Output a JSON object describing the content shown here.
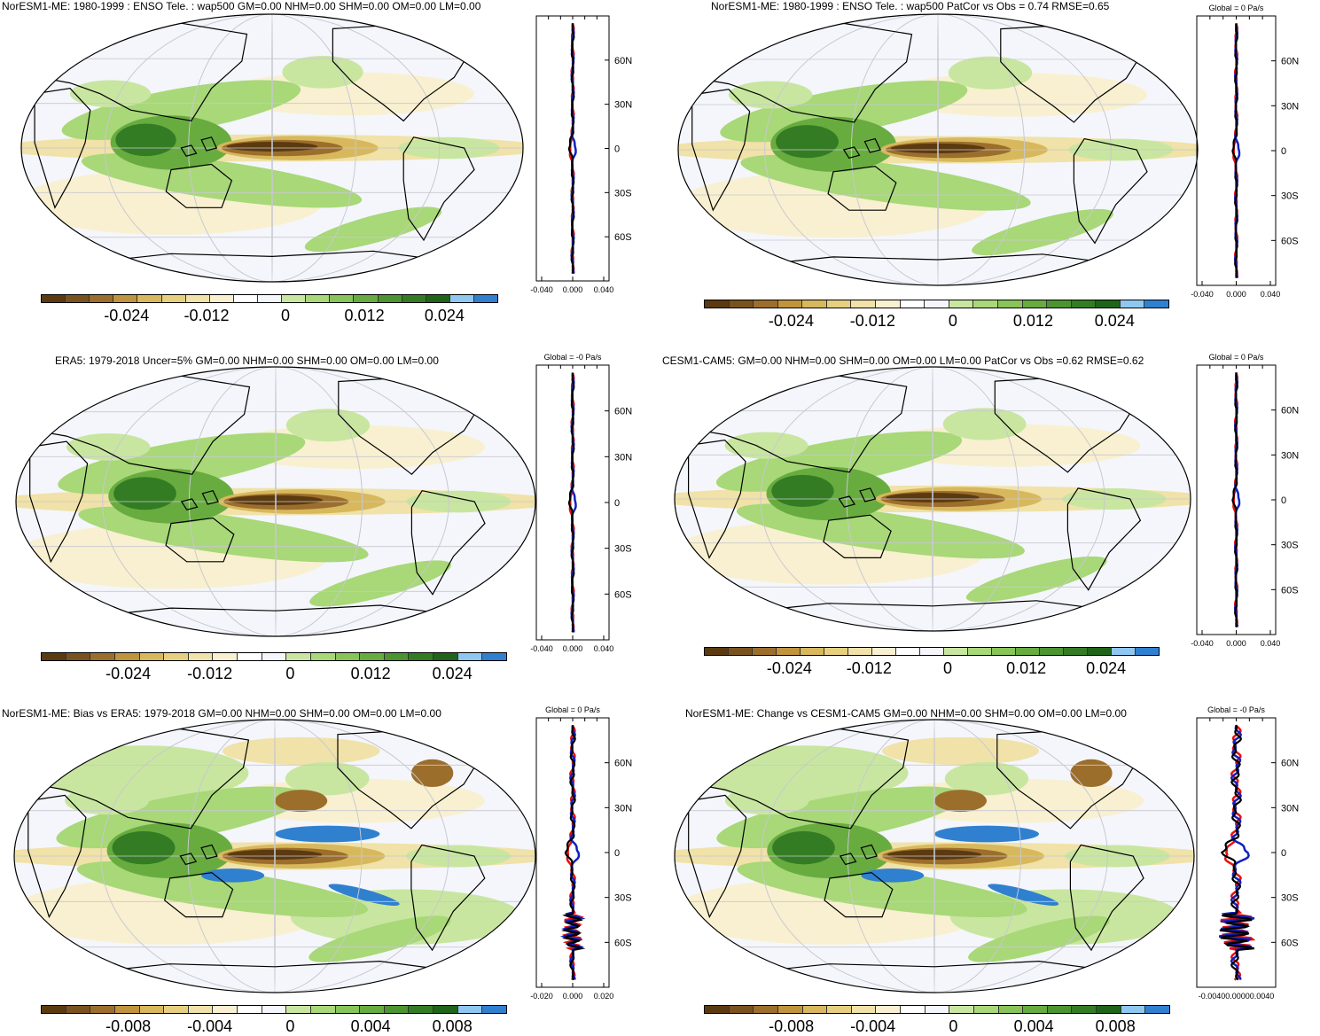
{
  "palette": [
    "#5c3a10",
    "#7a5220",
    "#9c6e2c",
    "#c0943c",
    "#d8b85c",
    "#e6d080",
    "#f0e2a8",
    "#f8f0d0",
    "#ffffff",
    "#f4f6fb",
    "#c8e6a0",
    "#a8d878",
    "#88c458",
    "#68ac40",
    "#4c9430",
    "#347c24",
    "#1f6418",
    "#8ec8f0",
    "#3080d0"
  ],
  "panels": [
    {
      "id": "p1",
      "title": "NorESM1-ME: 1980-1999 : ENSO Tele. : wap500 GM=0.00 NHM=0.00 SHM=0.00 OM=0.00 LM=0.00",
      "zonal_title": "",
      "cbar_labels": [
        "-0.024",
        "-0.012",
        "0",
        "0.012",
        "0.024"
      ],
      "zonal_ticks": [
        "-0.040",
        "0.000",
        "0.040"
      ],
      "lat_labels": [
        "60N",
        "30N",
        "0",
        "30S",
        "60S"
      ]
    },
    {
      "id": "p2",
      "title": "NorESM1-ME: 1980-1999 : ENSO Tele. : wap500 PatCor vs Obs = 0.74 RMSE=0.65",
      "zonal_title": "Global = 0 Pa/s",
      "cbar_labels": [
        "-0.024",
        "-0.012",
        "0",
        "0.012",
        "0.024"
      ],
      "zonal_ticks": [
        "-0.040",
        "0.000",
        "0.040"
      ],
      "lat_labels": [
        "60N",
        "30N",
        "0",
        "30S",
        "60S"
      ]
    },
    {
      "id": "p3",
      "title": "ERA5: 1979-2018 Uncer=5% GM=0.00 NHM=0.00 SHM=0.00 OM=0.00 LM=0.00",
      "zonal_title": "Global = -0 Pa/s",
      "cbar_labels": [
        "-0.024",
        "-0.012",
        "0",
        "0.012",
        "0.024"
      ],
      "zonal_ticks": [
        "-0.040",
        "0.000",
        "0.040"
      ],
      "lat_labels": [
        "60N",
        "30N",
        "0",
        "30S",
        "60S"
      ]
    },
    {
      "id": "p4",
      "title": "CESM1-CAM5: GM=0.00 NHM=0.00 SHM=0.00 OM=0.00 LM=0.00 PatCor vs Obs =0.62 RMSE=0.62",
      "zonal_title": "Global = 0 Pa/s",
      "cbar_labels": [
        "-0.024",
        "-0.012",
        "0",
        "0.012",
        "0.024"
      ],
      "zonal_ticks": [
        "-0.040",
        "0.000",
        "0.040"
      ],
      "lat_labels": [
        "60N",
        "30N",
        "0",
        "30S",
        "60S"
      ]
    },
    {
      "id": "p5",
      "title": "NorESM1-ME: Bias vs ERA5: 1979-2018 GM=0.00 NHM=0.00 SHM=0.00 OM=0.00 LM=0.00",
      "zonal_title": "Global = 0 Pa/s",
      "cbar_labels": [
        "-0.008",
        "-0.004",
        "0",
        "0.004",
        "0.008"
      ],
      "zonal_ticks": [
        "-0.020",
        "0.000",
        "0.020"
      ],
      "lat_labels": [
        "60N",
        "30N",
        "0",
        "30S",
        "60S"
      ]
    },
    {
      "id": "p6",
      "title": "NorESM1-ME: Change vs CESM1-CAM5 GM=0.00 NHM=0.00 SHM=0.00 OM=0.00 LM=0.00",
      "zonal_title": "Global = -0 Pa/s",
      "cbar_labels": [
        "-0.008",
        "-0.004",
        "0",
        "0.004",
        "0.008"
      ],
      "zonal_ticks": [
        "-0.00400.00000.0040"
      ],
      "lat_labels": [
        "60N",
        "30N",
        "0",
        "30S",
        "60S"
      ]
    }
  ]
}
